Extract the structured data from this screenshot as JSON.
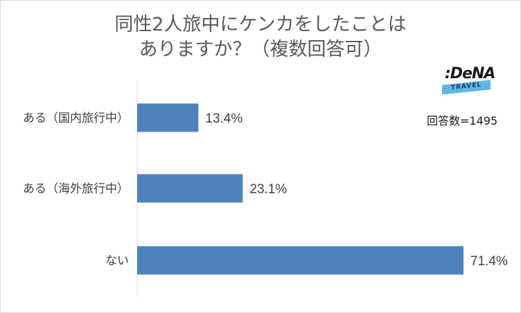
{
  "title_lines": [
    "同性2人旅中にケンカをしたことは",
    "ありますか？（複数回答可）"
  ],
  "logo": {
    "main": ":DeNA",
    "sub": "TRAVEL"
  },
  "note": "回答数=1495",
  "chart_data": {
    "type": "bar",
    "orientation": "horizontal",
    "categories": [
      "ある（国内旅行中）",
      "ある（海外旅行中）",
      "ない"
    ],
    "values": [
      13.4,
      23.1,
      71.4
    ],
    "value_labels": [
      "13.4%",
      "23.1%",
      "71.4%"
    ],
    "xlim": [
      0,
      75
    ],
    "bar_color": "#4f81bd",
    "grid": false,
    "legend": "none"
  }
}
